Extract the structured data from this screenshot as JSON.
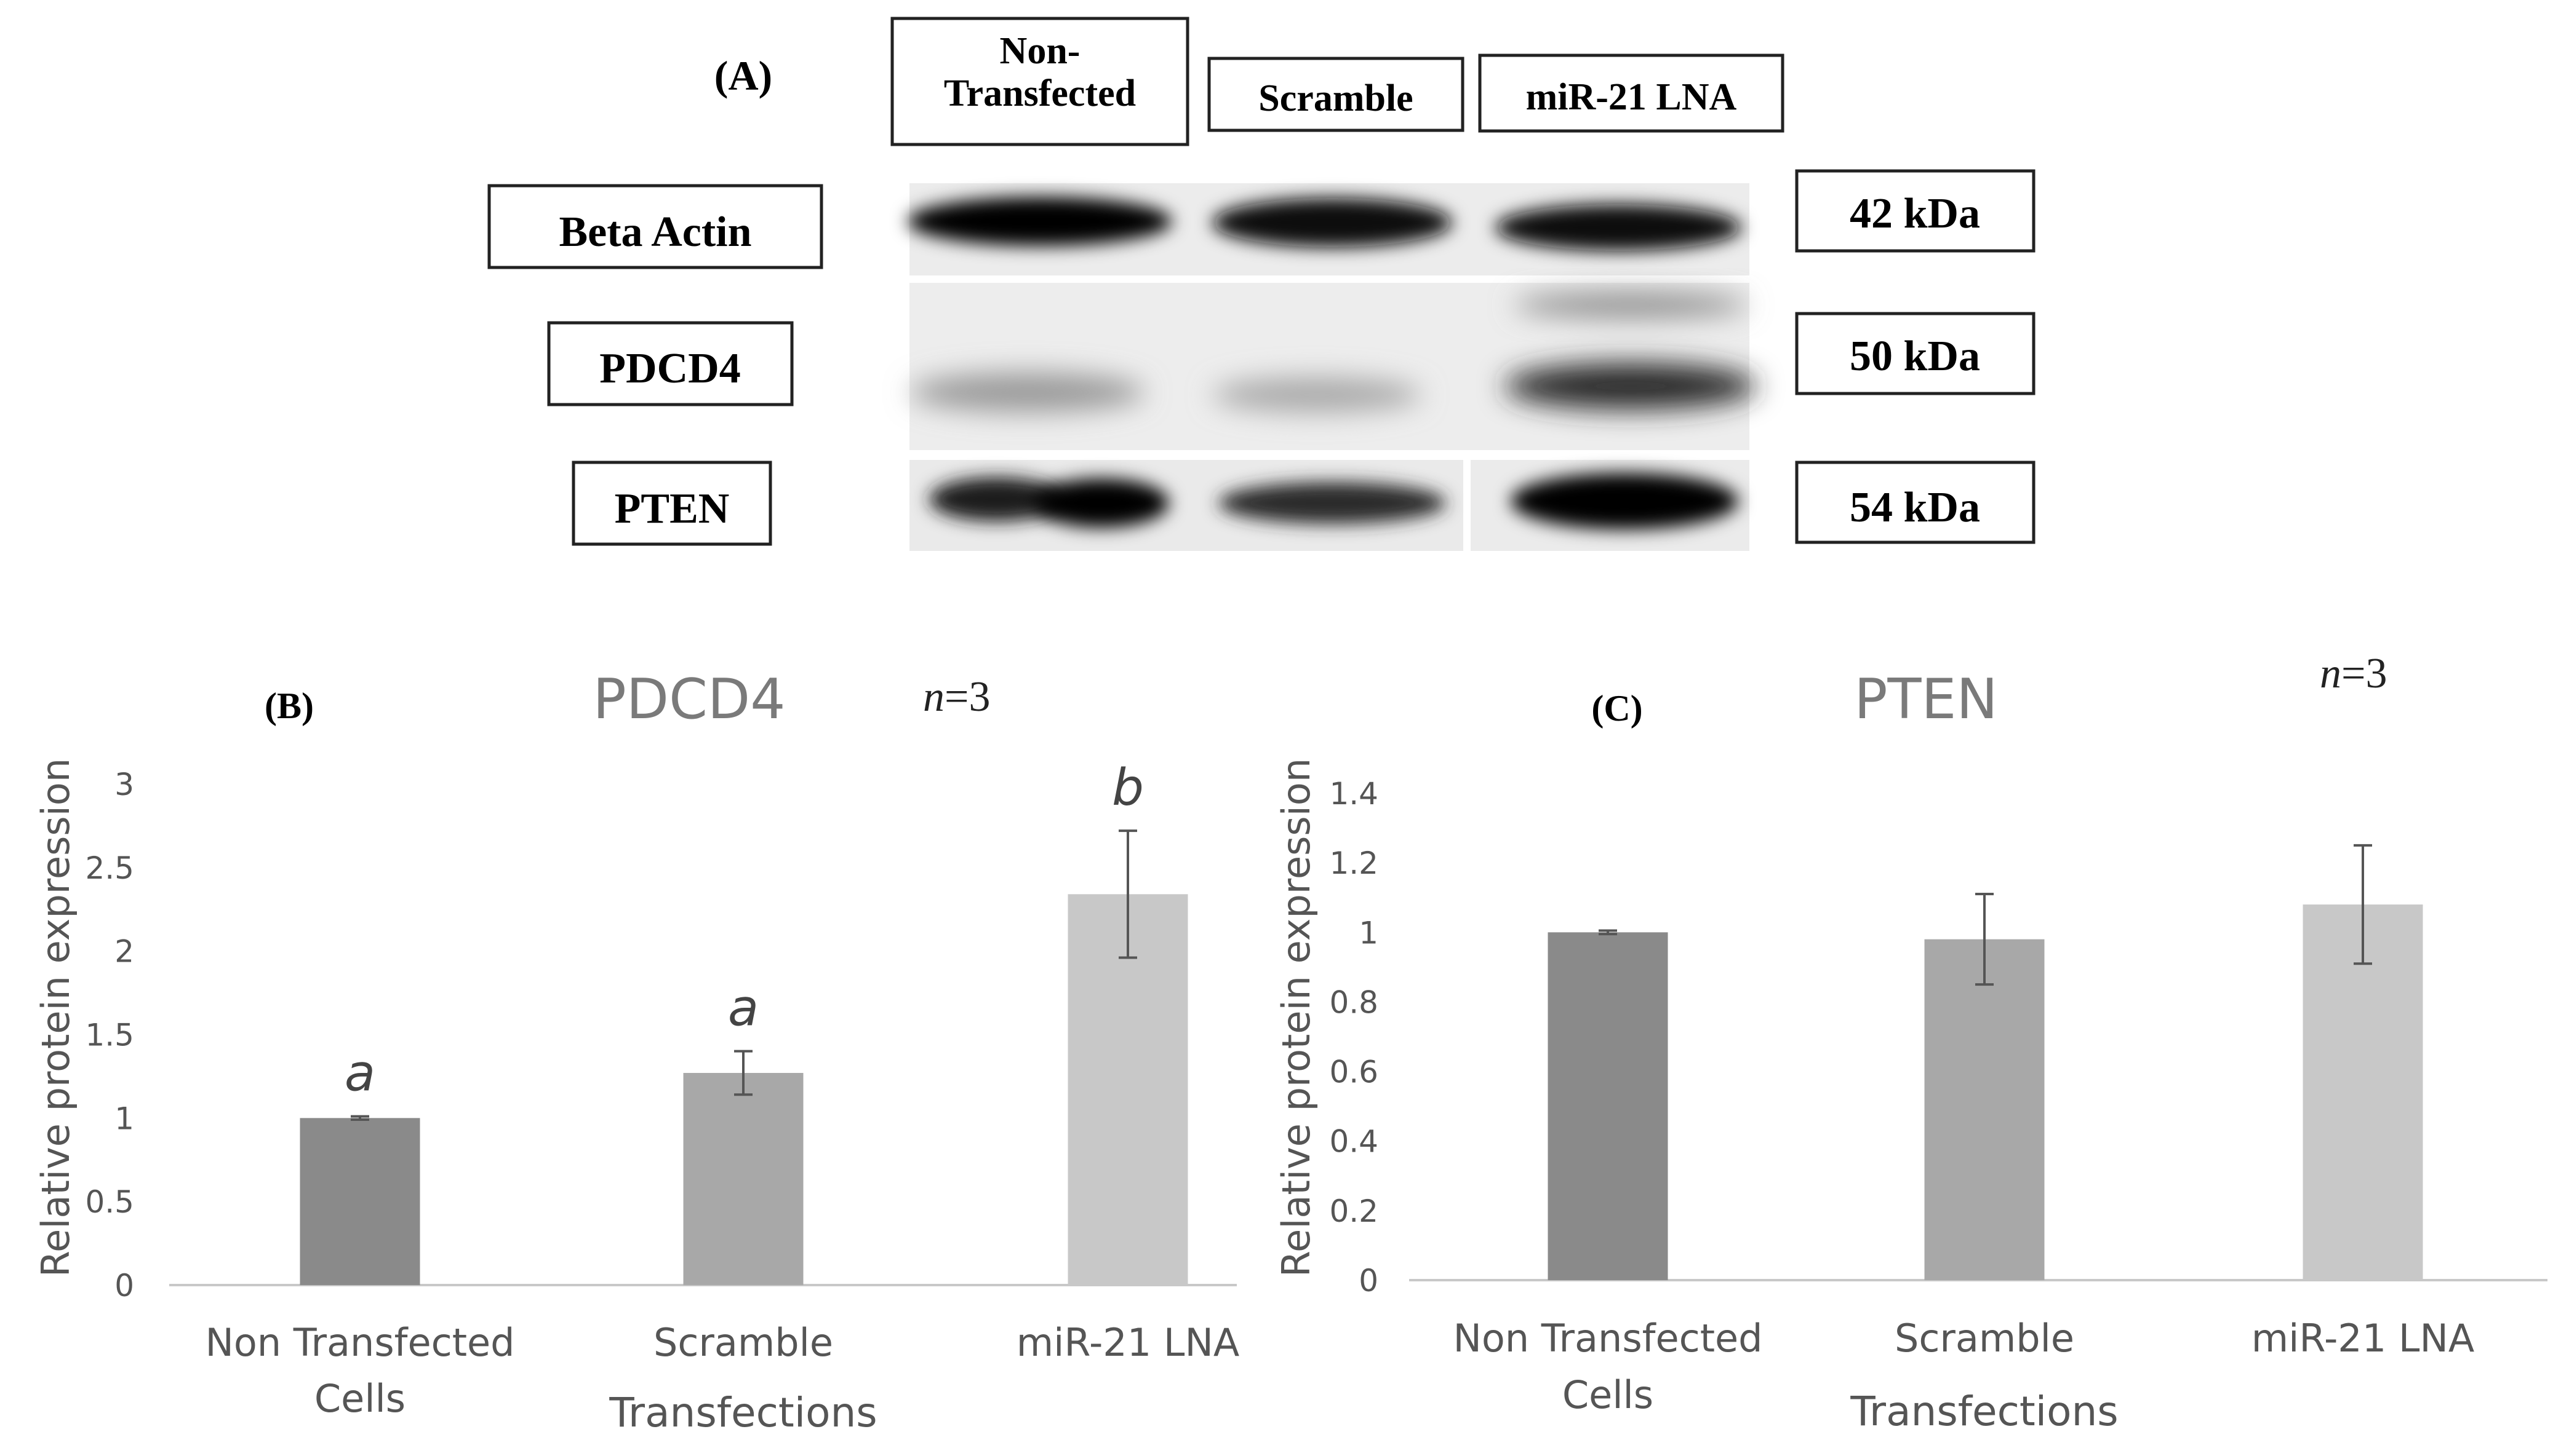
{
  "panel_a": {
    "label": "(A)",
    "lane_labels": [
      [
        "Non-",
        "Transfected"
      ],
      [
        "Scramble"
      ],
      [
        "miR-21 LNA"
      ]
    ],
    "row_labels": [
      "Beta Actin",
      "PDCD4",
      "PTEN"
    ],
    "sizes": [
      "42 kDa",
      "50 kDa",
      "54 kDa"
    ]
  },
  "chart_data": [
    {
      "type": "bar",
      "panel_label": "(B)",
      "title": "PDCD4",
      "n_label": "=3",
      "n_italic": "n",
      "ylabel": "Relative protein expression",
      "ylim": [
        0,
        3
      ],
      "yticks": [
        0,
        0.5,
        1,
        1.5,
        2,
        2.5,
        3
      ],
      "ytick_labels": [
        "0",
        "0.5",
        "1",
        "1.5",
        "2",
        "2.5",
        "3"
      ],
      "categories": [
        [
          "Non Transfected",
          "Cells"
        ],
        [
          "Scramble"
        ],
        [
          "miR-21 LNA"
        ]
      ],
      "xlabel": "Transfections",
      "values": [
        1.0,
        1.27,
        2.34
      ],
      "errors": [
        0.01,
        0.13,
        0.38
      ],
      "annotations": [
        "a",
        "a",
        "b"
      ],
      "bar_colors": [
        "#8a8a8a",
        "#a8a8a8",
        "#c8c8c8"
      ],
      "grid": false
    },
    {
      "type": "bar",
      "panel_label": "(C)",
      "title": "PTEN",
      "n_label": "=3",
      "n_italic": "n",
      "ylabel": "Relative protein expression",
      "ylim": [
        0,
        1.4
      ],
      "yticks": [
        0,
        0.2,
        0.4,
        0.6,
        0.8,
        1,
        1.2,
        1.4
      ],
      "ytick_labels": [
        "0",
        "0.2",
        "0.4",
        "0.6",
        "0.8",
        "1",
        "1.2",
        "1.4"
      ],
      "categories": [
        [
          "Non Transfected",
          "Cells"
        ],
        [
          "Scramble"
        ],
        [
          "miR-21 LNA"
        ]
      ],
      "xlabel": "Transfections",
      "values": [
        1.0,
        0.98,
        1.08
      ],
      "errors": [
        0.005,
        0.13,
        0.17
      ],
      "annotations": [
        "",
        "",
        ""
      ],
      "bar_colors": [
        "#8a8a8a",
        "#a8a8a8",
        "#c8c8c8"
      ],
      "grid": false
    }
  ]
}
